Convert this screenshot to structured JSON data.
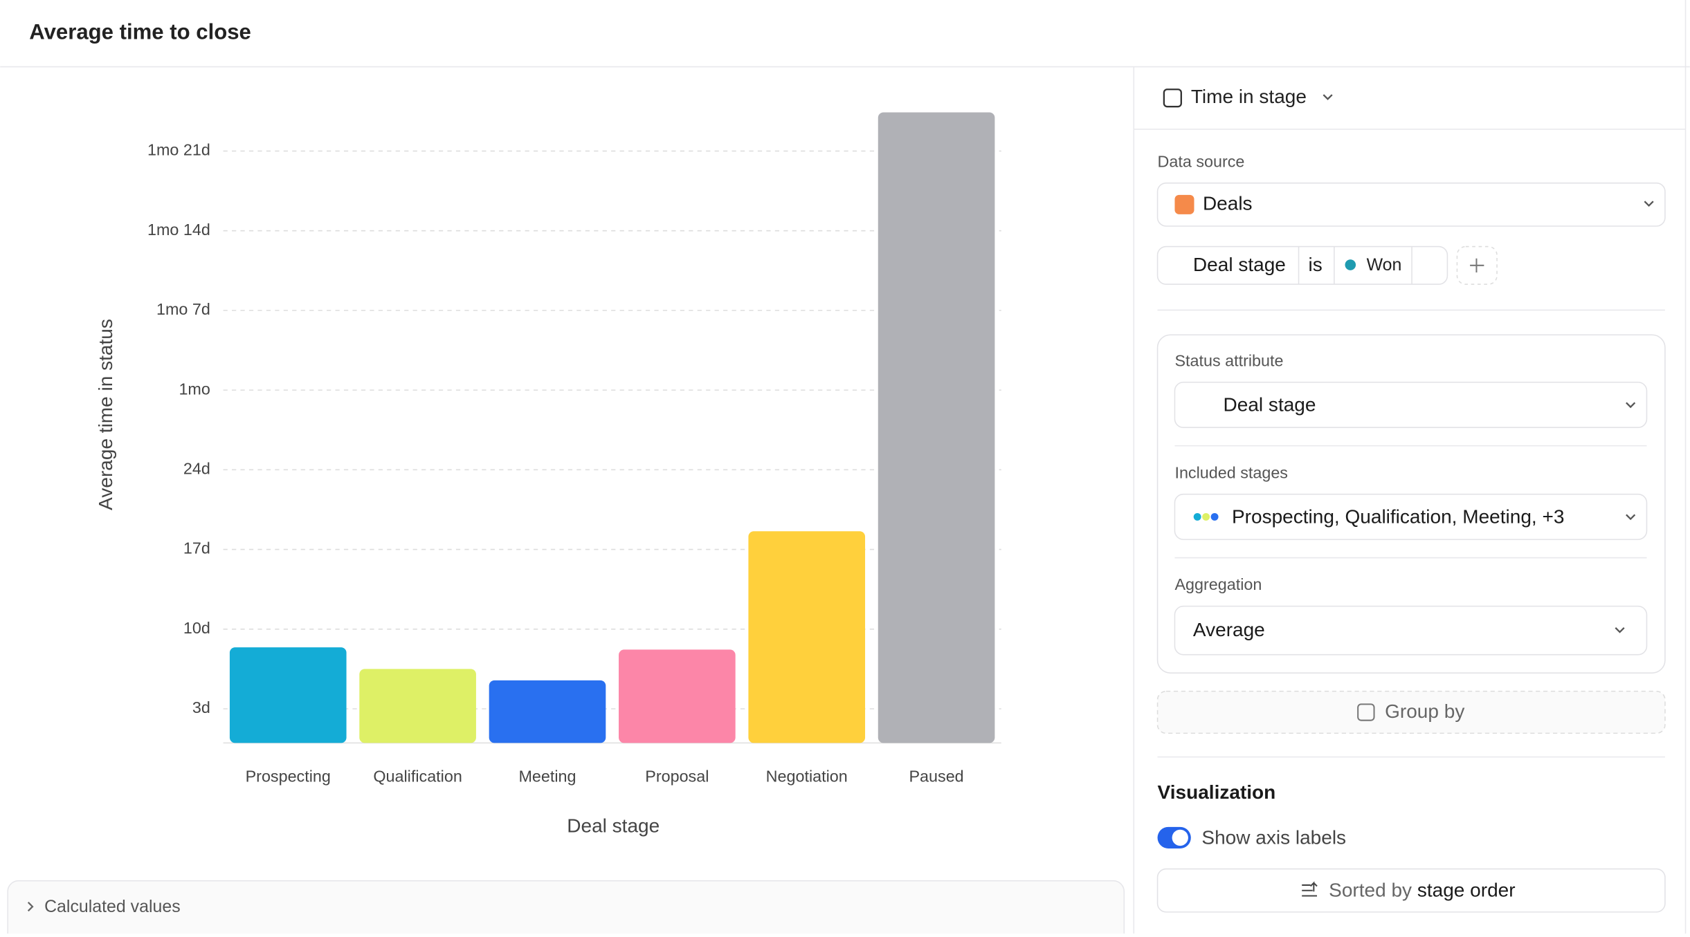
{
  "header": {
    "title": "Average time to close"
  },
  "chart_data": {
    "type": "bar",
    "xlabel": "Deal stage",
    "ylabel": "Average time in status",
    "categories": [
      "Prospecting",
      "Qualification",
      "Meeting",
      "Proposal",
      "Negotiation",
      "Paused"
    ],
    "values": [
      8.4,
      6.5,
      5.5,
      8.2,
      18.6,
      55.4
    ],
    "colors": [
      "#14acd6",
      "#def066",
      "#2970f0",
      "#fc86a8",
      "#ffd03c",
      "#b0b1b6"
    ],
    "ylim": [
      0,
      56
    ],
    "yticks": [
      {
        "value": 3,
        "label": "3d"
      },
      {
        "value": 10,
        "label": "10d"
      },
      {
        "value": 17,
        "label": "17d"
      },
      {
        "value": 24,
        "label": "24d"
      },
      {
        "value": 31,
        "label": "1mo"
      },
      {
        "value": 38,
        "label": "1mo 7d"
      },
      {
        "value": 45,
        "label": "1mo 14d"
      },
      {
        "value": 52,
        "label": "1mo 21d"
      }
    ],
    "grid": true
  },
  "footer": {
    "calculated_values": "Calculated values"
  },
  "panel": {
    "metric": "Time in stage",
    "data_source_label": "Data source",
    "data_source": "Deals",
    "filter": {
      "attribute": "Deal stage",
      "operator": "is",
      "value": "Won"
    },
    "status_attribute_label": "Status attribute",
    "status_attribute": "Deal stage",
    "included_stages_label": "Included stages",
    "included_stages": "Prospecting, Qualification, Meeting, +3",
    "aggregation_label": "Aggregation",
    "aggregation": "Average",
    "group_by": "Group by",
    "visualization": "Visualization",
    "show_axis_labels": "Show axis labels",
    "sorted_by": "Sorted by",
    "sort_value": "stage order"
  }
}
